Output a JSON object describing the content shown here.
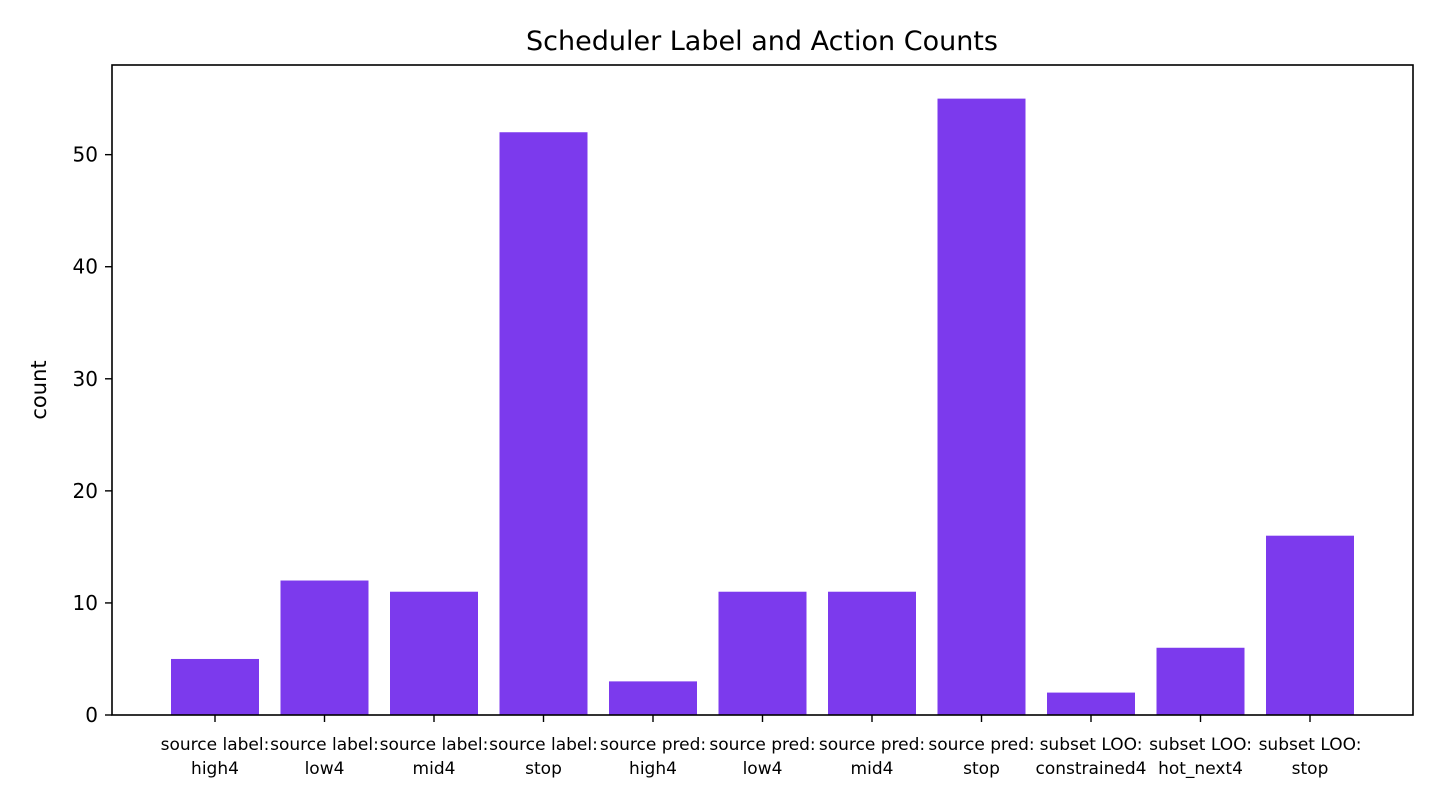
{
  "chart_data": {
    "type": "bar",
    "title": "Scheduler Label and Action Counts",
    "xlabel": "",
    "ylabel": "count",
    "ylim": [
      0,
      58
    ],
    "yticks": [
      0,
      10,
      20,
      30,
      40,
      50
    ],
    "grid": false,
    "legend": "none",
    "bar_color": "#7c3aed",
    "categories": [
      [
        "source label:",
        "high4"
      ],
      [
        "source label:",
        "low4"
      ],
      [
        "source label:",
        "mid4"
      ],
      [
        "source label:",
        "stop"
      ],
      [
        "source pred:",
        "high4"
      ],
      [
        "source pred:",
        "low4"
      ],
      [
        "source pred:",
        "mid4"
      ],
      [
        "source pred:",
        "stop"
      ],
      [
        "subset LOO:",
        "constrained4"
      ],
      [
        "subset LOO:",
        "hot_next4"
      ],
      [
        "subset LOO:",
        "stop"
      ]
    ],
    "values": [
      5,
      12,
      11,
      52,
      3,
      11,
      11,
      55,
      2,
      6,
      16
    ]
  }
}
